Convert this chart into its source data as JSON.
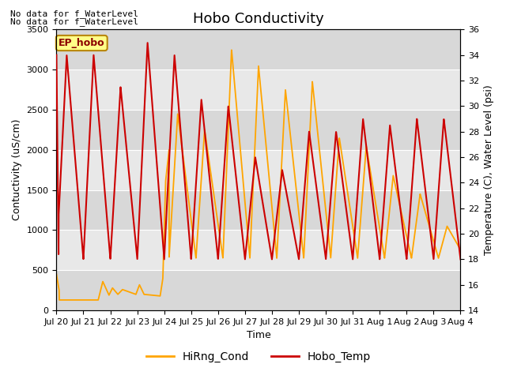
{
  "title": "Hobo Conductivity",
  "xlabel": "Time",
  "ylabel_left": "Contuctivity (uS/cm)",
  "ylabel_right": "Temperature (C), Water Level (psi)",
  "ylim_left": [
    0,
    3500
  ],
  "ylim_right": [
    14,
    36
  ],
  "yticks_left": [
    0,
    500,
    1000,
    1500,
    2000,
    2500,
    3000,
    3500
  ],
  "yticks_right": [
    14,
    16,
    18,
    20,
    22,
    24,
    26,
    28,
    30,
    32,
    34,
    36
  ],
  "xtick_labels": [
    "Jul 20",
    "Jul 21",
    "Jul 22",
    "Jul 23",
    "Jul 24",
    "Jul 25",
    "Jul 26",
    "Jul 27",
    "Jul 28",
    "Jul 29",
    "Jul 30",
    "Jul 31",
    "Aug 1",
    "Aug 2",
    "Aug 3",
    "Aug 4"
  ],
  "annotation_text1": "No data for f_WaterLevel",
  "annotation_text2": "No data for f̲WaterLevel",
  "station_label": "EP_hobo",
  "legend_items": [
    "HiRng_Cond",
    "Hobo_Temp"
  ],
  "legend_colors": [
    "#FFA500",
    "#CC0000"
  ],
  "cond_color": "#FFA500",
  "temp_color": "#CC0000",
  "bg_color": "#e8e8e8",
  "band_color": "#d0d0d0",
  "title_fontsize": 13,
  "axis_fontsize": 9,
  "tick_fontsize": 8,
  "annot_fontsize": 8
}
